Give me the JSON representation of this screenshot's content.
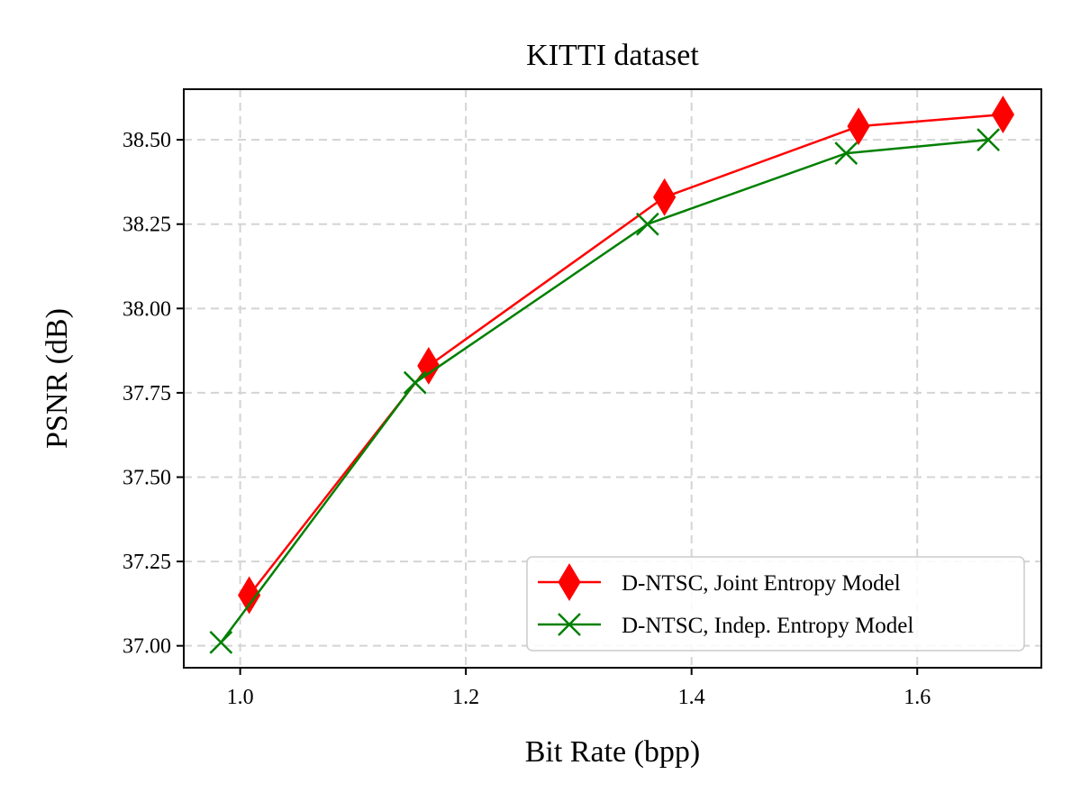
{
  "chart_data": {
    "type": "line",
    "title": "KITTI dataset",
    "xlabel": "Bit Rate (bpp)",
    "ylabel": "PSNR (dB)",
    "xlim": [
      0.95,
      1.71
    ],
    "ylim": [
      36.935,
      38.65
    ],
    "xticks": [
      1.0,
      1.2,
      1.4,
      1.6
    ],
    "xtick_labels": [
      "1.0",
      "1.2",
      "1.4",
      "1.6"
    ],
    "yticks": [
      37.0,
      37.25,
      37.5,
      37.75,
      38.0,
      38.25,
      38.5
    ],
    "ytick_labels": [
      "37.00",
      "37.25",
      "37.50",
      "37.75",
      "38.00",
      "38.25",
      "38.50"
    ],
    "grid": true,
    "legend_position": "lower-right",
    "series": [
      {
        "name": "D-NTSC, Joint Entropy Model",
        "color": "#ff0000",
        "marker": "diamond",
        "x": [
          1.008,
          1.167,
          1.376,
          1.548,
          1.676
        ],
        "y": [
          37.15,
          37.83,
          38.33,
          38.54,
          38.575
        ]
      },
      {
        "name": "D-NTSC, Indep. Entropy Model",
        "color": "#008000",
        "marker": "x",
        "x": [
          0.983,
          1.155,
          1.361,
          1.537,
          1.663
        ],
        "y": [
          37.01,
          37.78,
          38.25,
          38.46,
          38.5
        ]
      }
    ]
  }
}
